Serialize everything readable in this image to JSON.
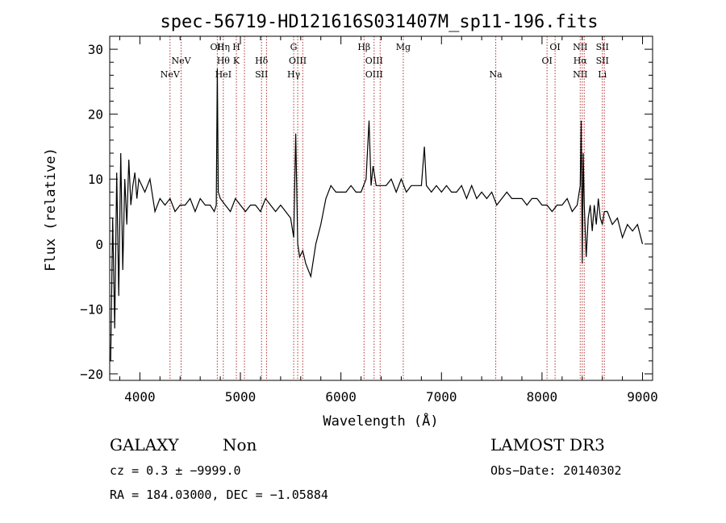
{
  "chart_data": {
    "type": "line",
    "title": "spec-56719-HD121616S031407M_sp11-196.fits",
    "xlabel": "Wavelength (Å)",
    "ylabel": "Flux (relative)",
    "xlim": [
      3700,
      9100
    ],
    "ylim": [
      -21,
      32
    ],
    "x_ticks": [
      4000,
      5000,
      6000,
      7000,
      8000,
      9000
    ],
    "x_tick_labels": [
      "4000",
      "5000",
      "6000",
      "7000",
      "8000",
      "9000"
    ],
    "y_ticks": [
      -20,
      -10,
      0,
      10,
      20,
      30
    ],
    "y_tick_labels": [
      "−20",
      "−10",
      "0",
      "10",
      "20",
      "30"
    ],
    "grid": false,
    "series": [
      {
        "color": "#000000",
        "x": [
          3710,
          3730,
          3750,
          3770,
          3790,
          3810,
          3830,
          3850,
          3870,
          3890,
          3910,
          3930,
          3950,
          3970,
          3990,
          4050,
          4100,
          4150,
          4200,
          4250,
          4300,
          4350,
          4400,
          4450,
          4500,
          4550,
          4600,
          4650,
          4700,
          4740,
          4760,
          4770,
          4780,
          4800,
          4850,
          4900,
          4950,
          5000,
          5050,
          5100,
          5150,
          5200,
          5250,
          5300,
          5350,
          5400,
          5450,
          5500,
          5530,
          5550,
          5570,
          5590,
          5620,
          5650,
          5700,
          5750,
          5800,
          5850,
          5900,
          5950,
          6000,
          6050,
          6100,
          6150,
          6200,
          6250,
          6280,
          6300,
          6320,
          6350,
          6400,
          6450,
          6500,
          6550,
          6600,
          6650,
          6700,
          6750,
          6800,
          6830,
          6850,
          6900,
          6950,
          7000,
          7050,
          7100,
          7150,
          7200,
          7250,
          7300,
          7350,
          7400,
          7450,
          7500,
          7550,
          7600,
          7650,
          7700,
          7750,
          7800,
          7850,
          7900,
          7950,
          8000,
          8050,
          8100,
          8150,
          8200,
          8250,
          8300,
          8350,
          8380,
          8390,
          8400,
          8410,
          8420,
          8440,
          8460,
          8480,
          8500,
          8520,
          8540,
          8560,
          8580,
          8600,
          8620,
          8650,
          8700,
          8750,
          8800,
          8850,
          8900,
          8950,
          9000
        ],
        "y": [
          -18,
          4,
          -13,
          11,
          -8,
          14,
          -4,
          10,
          3,
          13,
          6,
          9,
          11,
          7,
          10,
          8,
          10,
          5,
          7,
          6,
          7,
          5,
          6,
          6,
          7,
          5,
          7,
          6,
          6,
          5,
          6,
          27,
          8,
          7,
          6,
          5,
          7,
          6,
          5,
          6,
          6,
          5,
          7,
          6,
          5,
          6,
          5,
          4,
          1,
          17,
          0,
          -2,
          -1,
          -3,
          -5,
          0,
          3,
          7,
          9,
          8,
          8,
          8,
          9,
          8,
          8,
          10,
          19,
          9,
          12,
          9,
          9,
          9,
          10,
          8,
          10,
          8,
          9,
          9,
          9,
          15,
          9,
          8,
          9,
          8,
          9,
          8,
          8,
          9,
          7,
          9,
          7,
          8,
          7,
          8,
          6,
          7,
          8,
          7,
          7,
          7,
          6,
          7,
          7,
          6,
          6,
          5,
          6,
          6,
          7,
          5,
          6,
          9,
          19,
          -3,
          14,
          6,
          -2,
          4,
          6,
          2,
          6,
          3,
          7,
          4,
          3,
          5,
          5,
          3,
          4,
          1,
          3,
          2,
          3,
          0
        ]
      }
    ],
    "line_markers": [
      {
        "w": 4300,
        "labels": [
          "NeV"
        ],
        "rows": [
          2
        ]
      },
      {
        "w": 4410,
        "labels": [
          "NeV"
        ],
        "rows": [
          1
        ]
      },
      {
        "w": 4770,
        "labels": [
          "OII"
        ],
        "rows": [
          0,
          2
        ]
      },
      {
        "w": 4830,
        "labels": [
          "Hη",
          "Hθ",
          "HeI"
        ],
        "rows": [
          0,
          1,
          2
        ]
      },
      {
        "w": 4960,
        "labels": [
          "H",
          "K"
        ],
        "rows": [
          0,
          1
        ]
      },
      {
        "w": 5040,
        "labels": [],
        "rows": []
      },
      {
        "w": 5210,
        "labels": [
          "Hδ",
          "SII"
        ],
        "rows": [
          1,
          2
        ]
      },
      {
        "w": 5260,
        "labels": [],
        "rows": []
      },
      {
        "w": 5530,
        "labels": [
          "G",
          "Hγ"
        ],
        "rows": [
          0,
          2
        ]
      },
      {
        "w": 5570,
        "labels": [
          "OIII"
        ],
        "rows": [
          1
        ]
      },
      {
        "w": 5620,
        "labels": [],
        "rows": []
      },
      {
        "w": 6230,
        "labels": [
          "Hβ"
        ],
        "rows": [
          0
        ]
      },
      {
        "w": 6330,
        "labels": [
          "OIII",
          "OIII"
        ],
        "rows": [
          1,
          2
        ]
      },
      {
        "w": 6390,
        "labels": [],
        "rows": []
      },
      {
        "w": 6620,
        "labels": [
          "Mg"
        ],
        "rows": [
          0
        ]
      },
      {
        "w": 7540,
        "labels": [
          "Na"
        ],
        "rows": [
          2
        ]
      },
      {
        "w": 8050,
        "labels": [
          "OI"
        ],
        "rows": [
          1
        ]
      },
      {
        "w": 8130,
        "labels": [
          "OI"
        ],
        "rows": [
          0
        ]
      },
      {
        "w": 8380,
        "labels": [
          "NII",
          "Hα",
          "NII"
        ],
        "rows": [
          0,
          1,
          2
        ]
      },
      {
        "w": 8400,
        "labels": [],
        "rows": []
      },
      {
        "w": 8420,
        "labels": [],
        "rows": []
      },
      {
        "w": 8600,
        "labels": [
          "SII",
          "SII",
          "Li"
        ],
        "rows": [
          0,
          1,
          2
        ]
      },
      {
        "w": 8620,
        "labels": [],
        "rows": []
      }
    ]
  },
  "info": {
    "class_label": "GALAXY",
    "subclass_label": "Non",
    "cz_label": "cz = 0.3 ± −9999.0",
    "coords_label": "RA = 184.03000, DEC =  −1.05884",
    "survey_label": "LAMOST DR3",
    "obs_date_label": "Obs−Date: 20140302"
  }
}
